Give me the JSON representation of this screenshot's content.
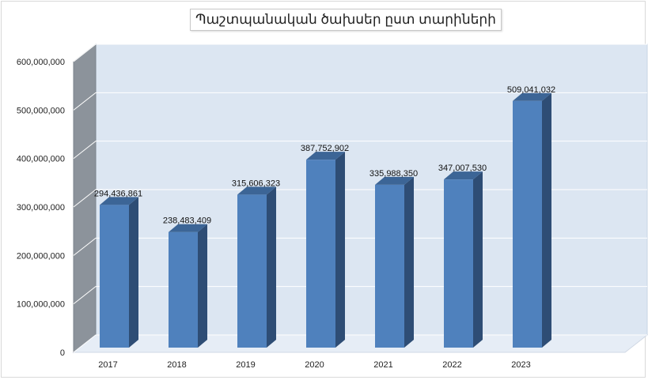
{
  "chart_data": {
    "type": "bar",
    "title": "Պաշտպանական ծախսեր ըստ տարիների",
    "categories": [
      "2017",
      "2018",
      "2019",
      "2020",
      "2021",
      "2022",
      "2023"
    ],
    "values": [
      294436861,
      238483409,
      315606323,
      387752902,
      335988350,
      347007530,
      509041032
    ],
    "data_labels": [
      "294,436,861",
      "238,483,409",
      "315,606,323",
      "387,752,902",
      "335,988,350",
      "347,007,530",
      "509,041,032"
    ],
    "yticks": [
      "0",
      "100,000,000",
      "200,000,000",
      "300,000,000",
      "400,000,000",
      "500,000,000",
      "600,000,000"
    ],
    "ylim": [
      0,
      600000000
    ],
    "grid": true,
    "legend": "none",
    "style": "3d-column",
    "colors": {
      "bar_front": "#4f81bd",
      "bar_side": "#2e4d75",
      "bar_top": "#3c6596",
      "back_wall": "#dce6f2",
      "side_wall": "#8c939b",
      "floor": "#e6edf6"
    }
  }
}
